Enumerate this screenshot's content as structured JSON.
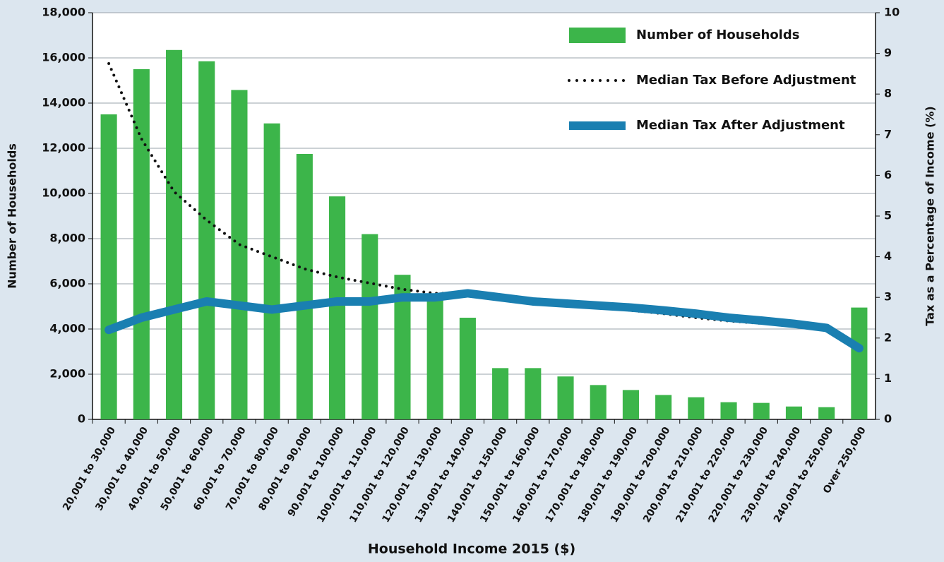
{
  "chart_data": {
    "type": "bar-line",
    "x_label": "Household Income 2015 ($)",
    "y_label": "Number of Households",
    "y2_label": "Tax as a Percentage of Income (%)",
    "categories": [
      "20,001 to 30,000",
      "30,001 to 40,000",
      "40,001 to 50,000",
      "50,001 to 60,000",
      "60,001 to 70,000",
      "70,001 to 80,000",
      "80,001 to 90,000",
      "90,001 to 100,000",
      "100,001 to 110,000",
      "110,001 to 120,000",
      "120,001 to 130,000",
      "130,001 to 140,000",
      "140,001 to 150,000",
      "150,001 to 160,000",
      "160,001 to 170,000",
      "170,001 to 180,000",
      "180,001 to 190,000",
      "190,001 to 200,000",
      "200,001 to 210,000",
      "210,001 to 220,000",
      "220,001 to 230,000",
      "230,001 to 240,000",
      "240,001 to 250,000",
      "Over 250,000"
    ],
    "series": [
      {
        "name": "Number of Households",
        "type": "bar",
        "color": "#3cb54a",
        "values": [
          13500,
          15500,
          16350,
          15850,
          14580,
          13100,
          11750,
          9870,
          8200,
          6400,
          5300,
          4500,
          2270,
          2270,
          1900,
          1520,
          1300,
          1080,
          980,
          760,
          730,
          570,
          540,
          4950
        ]
      },
      {
        "name": "Median Tax Before Adjustment",
        "type": "dotted-line",
        "axis": "y2",
        "color": "#111111",
        "values": [
          8.75,
          6.9,
          5.6,
          4.9,
          4.3,
          4.0,
          3.7,
          3.5,
          3.35,
          3.2,
          3.1,
          3.1,
          3.0,
          2.9,
          2.8,
          2.75,
          2.68,
          2.6,
          2.5,
          2.42,
          2.36,
          2.3,
          2.2,
          1.7
        ]
      },
      {
        "name": "Median Tax After Adjustment",
        "type": "line",
        "axis": "y2",
        "color": "#1a7fb1",
        "values": [
          2.2,
          2.5,
          2.7,
          2.9,
          2.8,
          2.7,
          2.8,
          2.9,
          2.9,
          3.0,
          3.0,
          3.1,
          3.0,
          2.9,
          2.85,
          2.8,
          2.75,
          2.68,
          2.6,
          2.5,
          2.43,
          2.35,
          2.25,
          1.75
        ]
      }
    ],
    "ylim": [
      0,
      18000
    ],
    "yticks": [
      0,
      {
        "value": 2000,
        "label": "2,000"
      },
      {
        "value": 4000,
        "label": "4,000"
      },
      {
        "value": 6000,
        "label": "6,000"
      },
      {
        "value": 8000,
        "label": "8,000"
      },
      {
        "value": 10000,
        "label": "10,000"
      },
      {
        "value": 12000,
        "label": "12,000"
      },
      {
        "value": 14000,
        "label": "14,000"
      },
      {
        "value": 16000,
        "label": "16,000"
      },
      {
        "value": 18000,
        "label": "18,000"
      }
    ],
    "y2lim": [
      0,
      10
    ],
    "y2ticks": [
      0,
      1,
      2,
      3,
      4,
      5,
      6,
      7,
      8,
      9,
      10
    ],
    "grid": true,
    "legend": "top-right"
  }
}
